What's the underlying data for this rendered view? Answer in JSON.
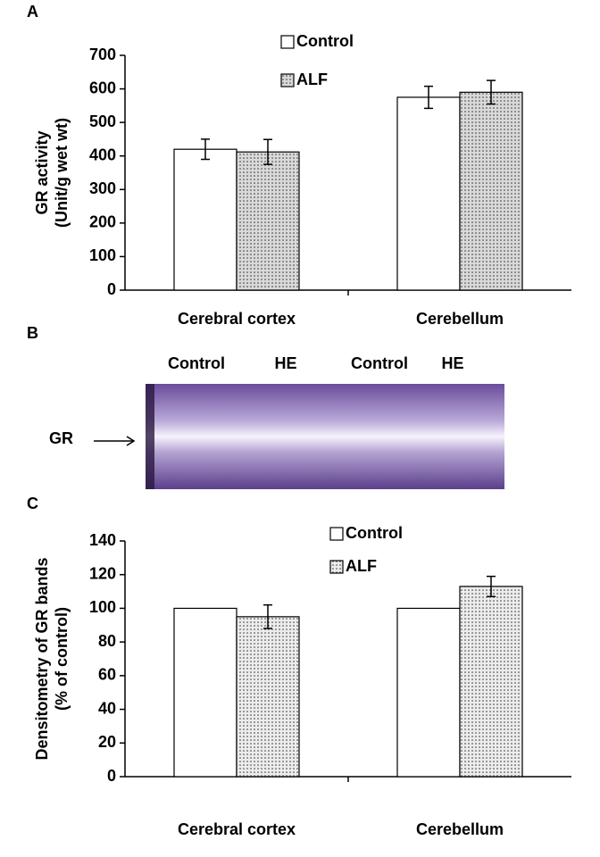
{
  "chart_data": [
    {
      "type": "bar",
      "panel_label": "A",
      "ylabel": [
        "GR activity",
        "(Unit/g wet wt)"
      ],
      "categories": [
        "Cerebral cortex",
        "Cerebellum"
      ],
      "series": [
        {
          "name": "Control",
          "color": "#ffffff",
          "values": [
            420,
            575
          ],
          "errors": [
            30,
            33
          ]
        },
        {
          "name": "ALF",
          "color": "#d9d9d9",
          "fill_pattern": "dots",
          "values": [
            412,
            590
          ],
          "errors": [
            37,
            35
          ]
        }
      ],
      "ylim": [
        0,
        700
      ],
      "yticks": [
        0,
        100,
        200,
        300,
        400,
        500,
        600,
        700
      ]
    },
    {
      "type": "bar",
      "panel_label": "C",
      "ylabel": [
        "Densitometry of GR bands",
        "(% of control)"
      ],
      "categories": [
        "Cerebral cortex",
        "Cerebellum"
      ],
      "series": [
        {
          "name": "Control",
          "color": "#ffffff",
          "values": [
            100,
            100
          ]
        },
        {
          "name": "ALF",
          "color": "#ececec",
          "fill_pattern": "dots",
          "values": [
            95,
            113
          ],
          "errors": [
            7,
            6
          ]
        }
      ],
      "ylim": [
        0,
        140
      ],
      "yticks": [
        0,
        20,
        40,
        60,
        80,
        100,
        120,
        140
      ]
    }
  ],
  "gel": {
    "panel_label": "B",
    "lane_labels": [
      "Control",
      "HE",
      "Control",
      "HE"
    ],
    "band_label": "GR"
  }
}
